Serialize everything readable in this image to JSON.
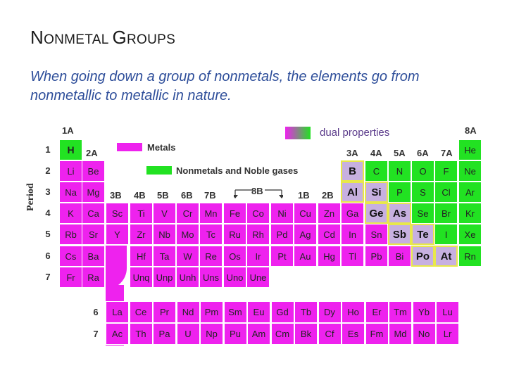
{
  "title": {
    "first": "N",
    "first_rest": "ONMETAL ",
    "second": "G",
    "second_rest": "ROUPS"
  },
  "subtitle": "When going down a group of nonmetals, the elements go from nonmetallic to metallic in nature.",
  "legend": {
    "dual": "dual properties",
    "metals": "Metals",
    "nonmetals": "Nonmetals and Noble gases"
  },
  "period_label": "Period",
  "colors": {
    "metal": "#ee22ee",
    "nonmetal": "#22e222",
    "dual": "#c7b0e0",
    "dual_border": "#e8e84a"
  },
  "group_labels": [
    "1A",
    "2A",
    "3B",
    "4B",
    "5B",
    "6B",
    "7B",
    "8B",
    "1B",
    "2B",
    "3A",
    "4A",
    "5A",
    "6A",
    "7A",
    "8A"
  ],
  "period_numbers": [
    "1",
    "2",
    "3",
    "4",
    "5",
    "6",
    "7"
  ],
  "series_numbers": [
    "6",
    "7"
  ],
  "elements": [
    {
      "s": "H",
      "t": "n",
      "r": 1,
      "c": 1
    },
    {
      "s": "He",
      "t": "n",
      "r": 1,
      "c": 18
    },
    {
      "s": "Li",
      "t": "m",
      "r": 2,
      "c": 1
    },
    {
      "s": "Be",
      "t": "m",
      "r": 2,
      "c": 2
    },
    {
      "s": "B",
      "t": "d",
      "r": 2,
      "c": 13
    },
    {
      "s": "C",
      "t": "n",
      "r": 2,
      "c": 14
    },
    {
      "s": "N",
      "t": "n",
      "r": 2,
      "c": 15
    },
    {
      "s": "O",
      "t": "n",
      "r": 2,
      "c": 16
    },
    {
      "s": "F",
      "t": "n",
      "r": 2,
      "c": 17
    },
    {
      "s": "Ne",
      "t": "n",
      "r": 2,
      "c": 18
    },
    {
      "s": "Na",
      "t": "m",
      "r": 3,
      "c": 1
    },
    {
      "s": "Mg",
      "t": "m",
      "r": 3,
      "c": 2
    },
    {
      "s": "Al",
      "t": "d",
      "r": 3,
      "c": 13
    },
    {
      "s": "Si",
      "t": "d",
      "r": 3,
      "c": 14
    },
    {
      "s": "P",
      "t": "n",
      "r": 3,
      "c": 15
    },
    {
      "s": "S",
      "t": "n",
      "r": 3,
      "c": 16
    },
    {
      "s": "Cl",
      "t": "n",
      "r": 3,
      "c": 17
    },
    {
      "s": "Ar",
      "t": "n",
      "r": 3,
      "c": 18
    },
    {
      "s": "K",
      "t": "m",
      "r": 4,
      "c": 1
    },
    {
      "s": "Ca",
      "t": "m",
      "r": 4,
      "c": 2
    },
    {
      "s": "Sc",
      "t": "m",
      "r": 4,
      "c": 3
    },
    {
      "s": "Ti",
      "t": "m",
      "r": 4,
      "c": 4
    },
    {
      "s": "V",
      "t": "m",
      "r": 4,
      "c": 5
    },
    {
      "s": "Cr",
      "t": "m",
      "r": 4,
      "c": 6
    },
    {
      "s": "Mn",
      "t": "m",
      "r": 4,
      "c": 7
    },
    {
      "s": "Fe",
      "t": "m",
      "r": 4,
      "c": 8
    },
    {
      "s": "Co",
      "t": "m",
      "r": 4,
      "c": 9
    },
    {
      "s": "Ni",
      "t": "m",
      "r": 4,
      "c": 10
    },
    {
      "s": "Cu",
      "t": "m",
      "r": 4,
      "c": 11
    },
    {
      "s": "Zn",
      "t": "m",
      "r": 4,
      "c": 12
    },
    {
      "s": "Ga",
      "t": "m",
      "r": 4,
      "c": 13
    },
    {
      "s": "Ge",
      "t": "d",
      "r": 4,
      "c": 14
    },
    {
      "s": "As",
      "t": "d",
      "r": 4,
      "c": 15
    },
    {
      "s": "Se",
      "t": "n",
      "r": 4,
      "c": 16
    },
    {
      "s": "Br",
      "t": "n",
      "r": 4,
      "c": 17
    },
    {
      "s": "Kr",
      "t": "n",
      "r": 4,
      "c": 18
    },
    {
      "s": "Rb",
      "t": "m",
      "r": 5,
      "c": 1
    },
    {
      "s": "Sr",
      "t": "m",
      "r": 5,
      "c": 2
    },
    {
      "s": "Y",
      "t": "m",
      "r": 5,
      "c": 3
    },
    {
      "s": "Zr",
      "t": "m",
      "r": 5,
      "c": 4
    },
    {
      "s": "Nb",
      "t": "m",
      "r": 5,
      "c": 5
    },
    {
      "s": "Mo",
      "t": "m",
      "r": 5,
      "c": 6
    },
    {
      "s": "Tc",
      "t": "m",
      "r": 5,
      "c": 7
    },
    {
      "s": "Ru",
      "t": "m",
      "r": 5,
      "c": 8
    },
    {
      "s": "Rh",
      "t": "m",
      "r": 5,
      "c": 9
    },
    {
      "s": "Pd",
      "t": "m",
      "r": 5,
      "c": 10
    },
    {
      "s": "Ag",
      "t": "m",
      "r": 5,
      "c": 11
    },
    {
      "s": "Cd",
      "t": "m",
      "r": 5,
      "c": 12
    },
    {
      "s": "In",
      "t": "m",
      "r": 5,
      "c": 13
    },
    {
      "s": "Sn",
      "t": "m",
      "r": 5,
      "c": 14
    },
    {
      "s": "Sb",
      "t": "d",
      "r": 5,
      "c": 15
    },
    {
      "s": "Te",
      "t": "d",
      "r": 5,
      "c": 16
    },
    {
      "s": "I",
      "t": "n",
      "r": 5,
      "c": 17
    },
    {
      "s": "Xe",
      "t": "n",
      "r": 5,
      "c": 18
    },
    {
      "s": "Cs",
      "t": "m",
      "r": 6,
      "c": 1
    },
    {
      "s": "Ba",
      "t": "m",
      "r": 6,
      "c": 2
    },
    {
      "s": "Hf",
      "t": "m",
      "r": 6,
      "c": 4
    },
    {
      "s": "Ta",
      "t": "m",
      "r": 6,
      "c": 5
    },
    {
      "s": "W",
      "t": "m",
      "r": 6,
      "c": 6
    },
    {
      "s": "Re",
      "t": "m",
      "r": 6,
      "c": 7
    },
    {
      "s": "Os",
      "t": "m",
      "r": 6,
      "c": 8
    },
    {
      "s": "Ir",
      "t": "m",
      "r": 6,
      "c": 9
    },
    {
      "s": "Pt",
      "t": "m",
      "r": 6,
      "c": 10
    },
    {
      "s": "Au",
      "t": "m",
      "r": 6,
      "c": 11
    },
    {
      "s": "Hg",
      "t": "m",
      "r": 6,
      "c": 12
    },
    {
      "s": "Tl",
      "t": "m",
      "r": 6,
      "c": 13
    },
    {
      "s": "Pb",
      "t": "m",
      "r": 6,
      "c": 14
    },
    {
      "s": "Bi",
      "t": "m",
      "r": 6,
      "c": 15
    },
    {
      "s": "Po",
      "t": "d",
      "r": 6,
      "c": 16
    },
    {
      "s": "At",
      "t": "d",
      "r": 6,
      "c": 17
    },
    {
      "s": "Rn",
      "t": "n",
      "r": 6,
      "c": 18
    },
    {
      "s": "Fr",
      "t": "m",
      "r": 7,
      "c": 1
    },
    {
      "s": "Ra",
      "t": "m",
      "r": 7,
      "c": 2
    },
    {
      "s": "Unq",
      "t": "m",
      "r": 7,
      "c": 4
    },
    {
      "s": "Unp",
      "t": "m",
      "r": 7,
      "c": 5
    },
    {
      "s": "Unh",
      "t": "m",
      "r": 7,
      "c": 6
    },
    {
      "s": "Uns",
      "t": "m",
      "r": 7,
      "c": 7
    },
    {
      "s": "Uno",
      "t": "m",
      "r": 7,
      "c": 8
    },
    {
      "s": "Une",
      "t": "m",
      "r": 7,
      "c": 9
    }
  ],
  "lanthanides": [
    "La",
    "Ce",
    "Pr",
    "Nd",
    "Pm",
    "Sm",
    "Eu",
    "Gd",
    "Tb",
    "Dy",
    "Ho",
    "Er",
    "Tm",
    "Yb",
    "Lu"
  ],
  "actinides": [
    "Ac",
    "Th",
    "Pa",
    "U",
    "Np",
    "Pu",
    "Am",
    "Cm",
    "Bk",
    "Cf",
    "Es",
    "Fm",
    "Md",
    "No",
    "Lr"
  ]
}
